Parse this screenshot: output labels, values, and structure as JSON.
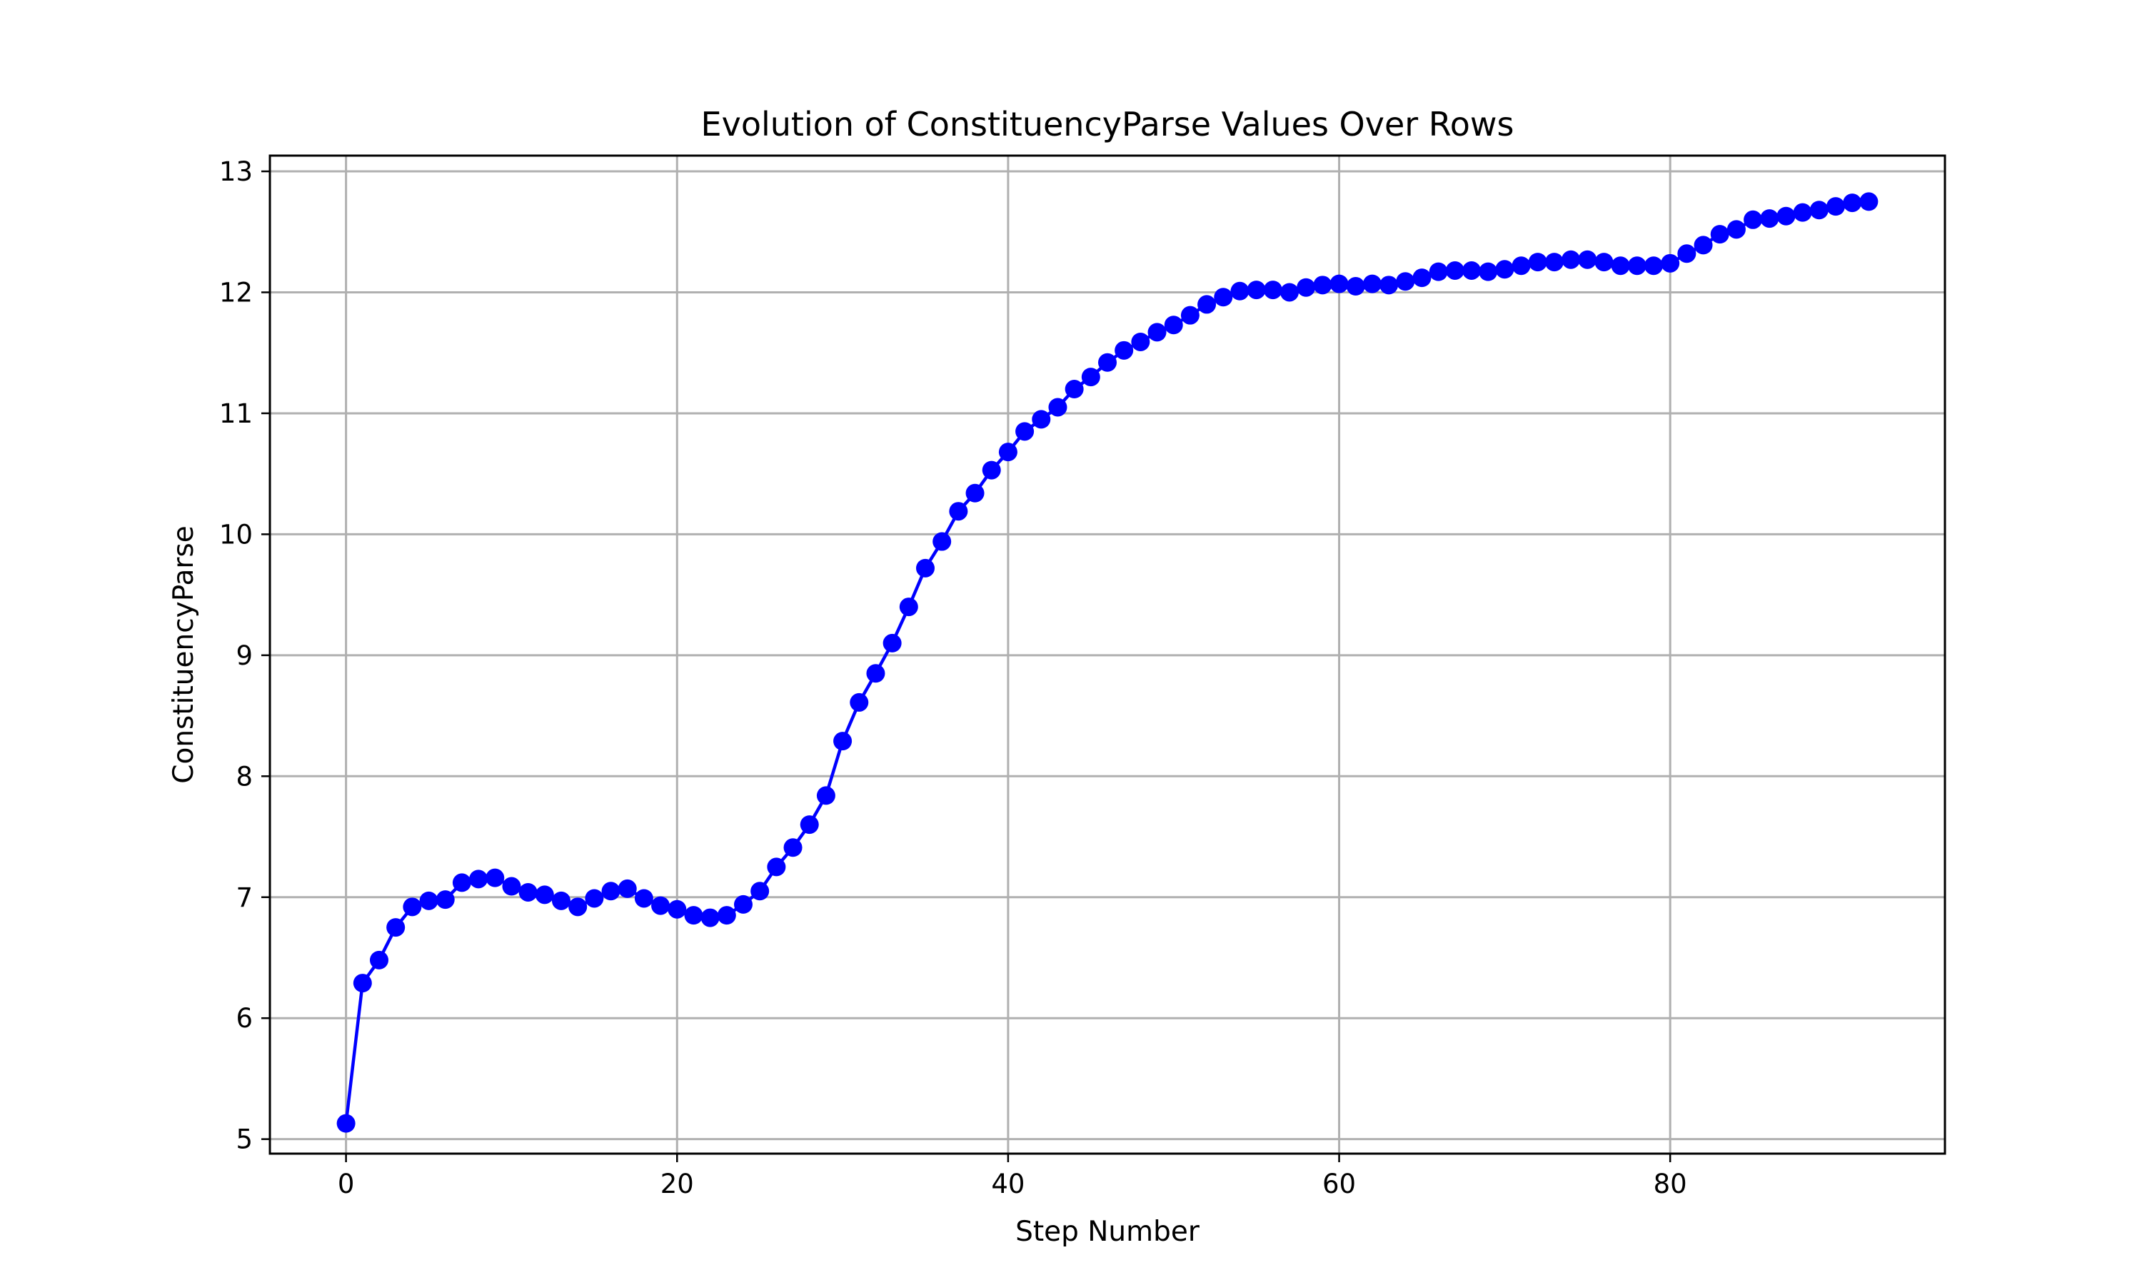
{
  "chart_data": {
    "type": "line",
    "title": "Evolution of ConstituencyParse Values Over Rows",
    "xlabel": "Step Number",
    "ylabel": "ConstituencyParse",
    "xlim": [
      -4.6,
      96.6
    ],
    "ylim": [
      4.88,
      13.13
    ],
    "xticks": [
      0,
      20,
      40,
      60,
      80
    ],
    "yticks": [
      5,
      6,
      7,
      8,
      9,
      10,
      11,
      12,
      13
    ],
    "grid": true,
    "color": "#0000ff",
    "x": [
      0,
      1,
      2,
      3,
      4,
      5,
      6,
      7,
      8,
      9,
      10,
      11,
      12,
      13,
      14,
      15,
      16,
      17,
      18,
      19,
      20,
      21,
      22,
      23,
      24,
      25,
      26,
      27,
      28,
      29,
      30,
      31,
      32,
      33,
      34,
      35,
      36,
      37,
      38,
      39,
      40,
      41,
      42,
      43,
      44,
      45,
      46,
      47,
      48,
      49,
      50,
      51,
      52,
      53,
      54,
      55,
      56,
      57,
      58,
      59,
      60,
      61,
      62,
      63,
      64,
      65,
      66,
      67,
      68,
      69,
      70,
      71,
      72,
      73,
      74,
      75,
      76,
      77,
      78,
      79,
      80,
      81,
      82,
      83,
      84,
      85,
      86,
      87,
      88,
      89,
      90,
      91,
      92
    ],
    "y": [
      5.13,
      6.29,
      6.48,
      6.75,
      6.92,
      6.97,
      6.98,
      7.12,
      7.15,
      7.16,
      7.09,
      7.04,
      7.02,
      6.97,
      6.92,
      6.99,
      7.05,
      7.07,
      6.99,
      6.93,
      6.9,
      6.85,
      6.83,
      6.85,
      6.94,
      7.05,
      7.25,
      7.41,
      7.6,
      7.84,
      8.29,
      8.61,
      8.85,
      9.1,
      9.4,
      9.72,
      9.94,
      10.19,
      10.34,
      10.53,
      10.68,
      10.85,
      10.95,
      11.05,
      11.2,
      11.3,
      11.42,
      11.52,
      11.59,
      11.67,
      11.73,
      11.81,
      11.9,
      11.96,
      12.01,
      12.02,
      12.02,
      12.0,
      12.04,
      12.06,
      12.07,
      12.05,
      12.07,
      12.06,
      12.09,
      12.12,
      12.17,
      12.18,
      12.18,
      12.17,
      12.19,
      12.22,
      12.25,
      12.25,
      12.27,
      12.27,
      12.25,
      12.22,
      12.22,
      12.22,
      12.24,
      12.32,
      12.39,
      12.48,
      12.52,
      12.6,
      12.61,
      12.63,
      12.66,
      12.68,
      12.71,
      12.74,
      12.75
    ]
  }
}
